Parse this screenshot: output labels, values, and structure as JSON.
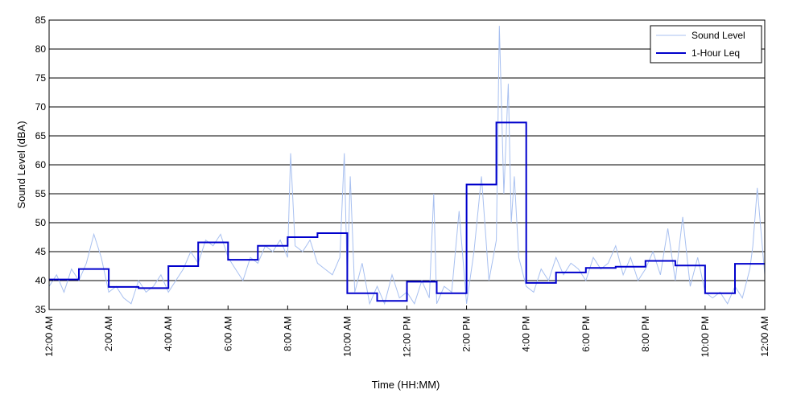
{
  "chart_data": {
    "type": "line",
    "xlabel": "Time (HH:MM)",
    "ylabel": "Sound Level (dBA)",
    "xlim_hours": [
      0,
      24
    ],
    "ylim": [
      35,
      85
    ],
    "y_ticks": [
      35,
      40,
      45,
      50,
      55,
      60,
      65,
      70,
      75,
      80,
      85
    ],
    "x_ticks": [
      {
        "hour": 0,
        "label": "12:00 AM"
      },
      {
        "hour": 2,
        "label": "2:00 AM"
      },
      {
        "hour": 4,
        "label": "4:00 AM"
      },
      {
        "hour": 6,
        "label": "6:00 AM"
      },
      {
        "hour": 8,
        "label": "8:00 AM"
      },
      {
        "hour": 10,
        "label": "10:00 AM"
      },
      {
        "hour": 12,
        "label": "12:00 PM"
      },
      {
        "hour": 14,
        "label": "2:00 PM"
      },
      {
        "hour": 16,
        "label": "4:00 PM"
      },
      {
        "hour": 18,
        "label": "6:00 PM"
      },
      {
        "hour": 20,
        "label": "8:00 PM"
      },
      {
        "hour": 22,
        "label": "10:00 PM"
      },
      {
        "hour": 24,
        "label": "12:00 AM"
      }
    ],
    "grid": "horizontal",
    "legend_position": "top-right",
    "series": [
      {
        "name": "Sound Level",
        "color": "#a8c0f0",
        "x_hours": [
          0,
          0.25,
          0.5,
          0.75,
          1,
          1.25,
          1.5,
          1.75,
          2,
          2.25,
          2.5,
          2.75,
          3,
          3.25,
          3.5,
          3.75,
          4,
          4.25,
          4.5,
          4.75,
          5,
          5.25,
          5.5,
          5.75,
          6,
          6.25,
          6.5,
          6.75,
          7,
          7.25,
          7.5,
          7.75,
          8,
          8.1,
          8.25,
          8.5,
          8.75,
          9,
          9.25,
          9.5,
          9.75,
          9.9,
          10,
          10.1,
          10.25,
          10.5,
          10.75,
          11,
          11.25,
          11.5,
          11.75,
          12,
          12.25,
          12.5,
          12.75,
          12.9,
          13,
          13.25,
          13.5,
          13.75,
          14,
          14.25,
          14.5,
          14.75,
          15,
          15.1,
          15.25,
          15.4,
          15.5,
          15.6,
          15.75,
          16,
          16.25,
          16.5,
          16.75,
          17,
          17.25,
          17.5,
          17.75,
          18,
          18.25,
          18.5,
          18.75,
          19,
          19.25,
          19.5,
          19.75,
          20,
          20.25,
          20.5,
          20.75,
          21,
          21.25,
          21.5,
          21.75,
          22,
          22.25,
          22.5,
          22.75,
          23,
          23.25,
          23.5,
          23.6,
          23.75,
          24
        ],
        "values": [
          39,
          41,
          38,
          42,
          40,
          43,
          48,
          44,
          38,
          39,
          37,
          36,
          40,
          38,
          39,
          41,
          38,
          40,
          42,
          45,
          43,
          47,
          46,
          48,
          44,
          42,
          40,
          44,
          43,
          46,
          45,
          47,
          44,
          62,
          46,
          45,
          47,
          43,
          42,
          41,
          44,
          62,
          40,
          58,
          38,
          43,
          36,
          39,
          36,
          41,
          37,
          38,
          36,
          40,
          37,
          55,
          36,
          39,
          38,
          52,
          36,
          45,
          58,
          40,
          47,
          84,
          55,
          74,
          50,
          58,
          44,
          39,
          38,
          42,
          40,
          44,
          41,
          43,
          42,
          40,
          44,
          42,
          43,
          46,
          41,
          44,
          40,
          42,
          45,
          41,
          49,
          40,
          51,
          39,
          44,
          38,
          37,
          38,
          36,
          39,
          37,
          42,
          46,
          56,
          41
        ]
      },
      {
        "name": "1-Hour Leq",
        "color": "#0000cc",
        "hour_levels": [
          40.2,
          42,
          38.9,
          38.7,
          42.5,
          46.6,
          43.6,
          46,
          47.5,
          48.2,
          37.8,
          36.5,
          39.8,
          37.8,
          56.6,
          67.3,
          39.6,
          41.4,
          42.2,
          42.4,
          43.4,
          42.6,
          37.8,
          42.9
        ]
      }
    ]
  }
}
